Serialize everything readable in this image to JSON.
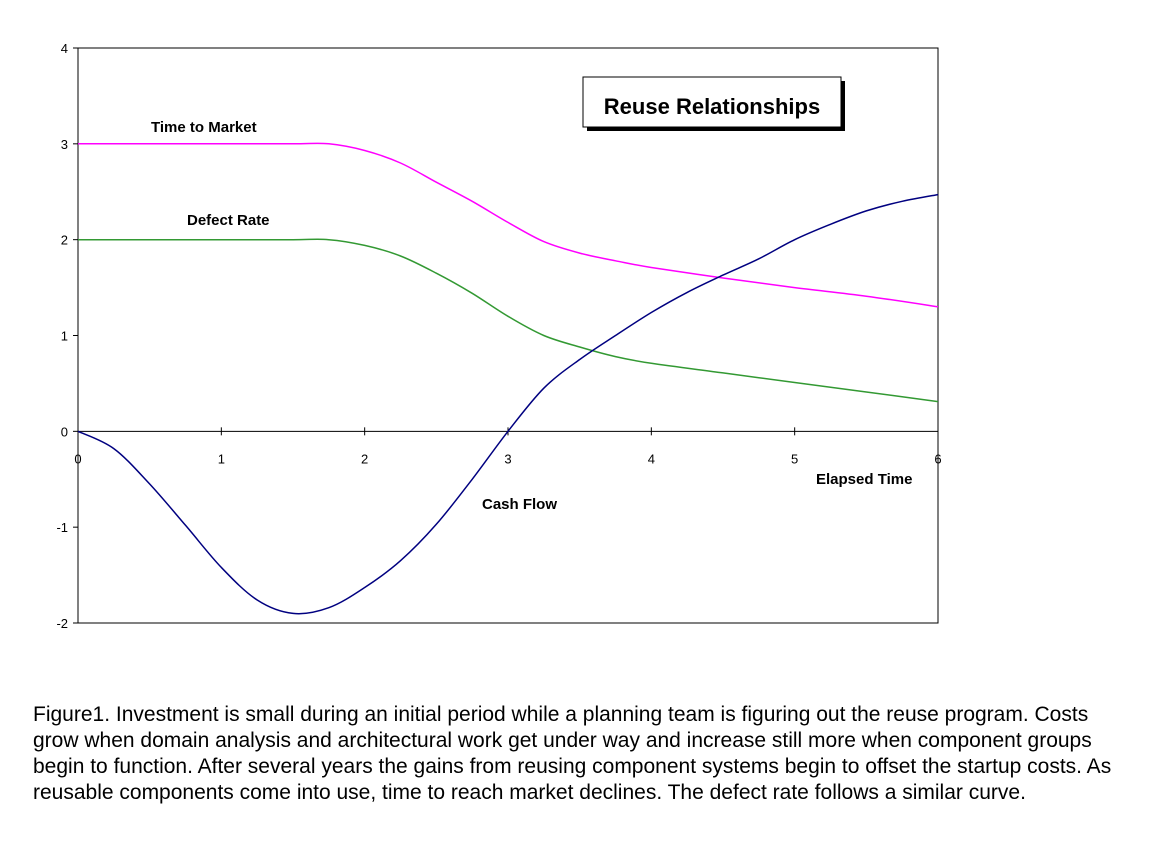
{
  "chart_data": {
    "type": "line",
    "title": "Reuse Relationships",
    "xlabel": "Elapsed Time",
    "ylabel": "",
    "xlim": [
      0,
      6
    ],
    "ylim": [
      -2,
      4
    ],
    "xticks": [
      "0",
      "1",
      "2",
      "3",
      "4",
      "5",
      "6"
    ],
    "yticks": [
      "-2",
      "-1",
      "0",
      "1",
      "2",
      "3",
      "4"
    ],
    "grid": false,
    "series": [
      {
        "name": "Time to Market",
        "color": "#ff00ff",
        "x": [
          0,
          0.5,
          1,
          1.5,
          1.75,
          2,
          2.25,
          2.5,
          2.75,
          3,
          3.25,
          3.5,
          3.75,
          4,
          4.5,
          5,
          5.5,
          6
        ],
        "y": [
          3,
          3,
          3,
          3,
          3,
          2.93,
          2.8,
          2.6,
          2.4,
          2.18,
          1.98,
          1.86,
          1.78,
          1.71,
          1.6,
          1.5,
          1.41,
          1.3
        ]
      },
      {
        "name": "Defect Rate",
        "color": "#339933",
        "x": [
          0,
          0.5,
          1,
          1.5,
          1.75,
          2,
          2.25,
          2.5,
          2.75,
          3,
          3.25,
          3.5,
          3.75,
          4,
          4.5,
          5,
          5.5,
          6
        ],
        "y": [
          2,
          2,
          2,
          2,
          2,
          1.94,
          1.83,
          1.65,
          1.44,
          1.2,
          1.0,
          0.88,
          0.78,
          0.71,
          0.61,
          0.51,
          0.41,
          0.31
        ]
      },
      {
        "name": "Cash Flow",
        "color": "#000080",
        "x": [
          0,
          0.25,
          0.5,
          0.75,
          1,
          1.25,
          1.5,
          1.75,
          2,
          2.25,
          2.5,
          2.75,
          3,
          3.25,
          3.5,
          3.75,
          4,
          4.25,
          4.5,
          4.75,
          5,
          5.25,
          5.5,
          5.75,
          6
        ],
        "y": [
          0,
          -0.18,
          -0.55,
          -0.98,
          -1.42,
          -1.76,
          -1.9,
          -1.84,
          -1.63,
          -1.35,
          -0.97,
          -0.5,
          0.0,
          0.45,
          0.75,
          1.0,
          1.24,
          1.45,
          1.63,
          1.8,
          2.0,
          2.16,
          2.3,
          2.4,
          2.47
        ]
      }
    ]
  },
  "caption": "Figure1.  Investment is small during an initial period while a planning team is figuring out the reuse program. Costs grow when domain analysis and architectural work get under way and increase still more when component groups begin to function. After several years the gains from reusing component systems begin to offset the startup costs. As reusable components come into use, time to reach market declines. The defect rate follows a similar curve."
}
